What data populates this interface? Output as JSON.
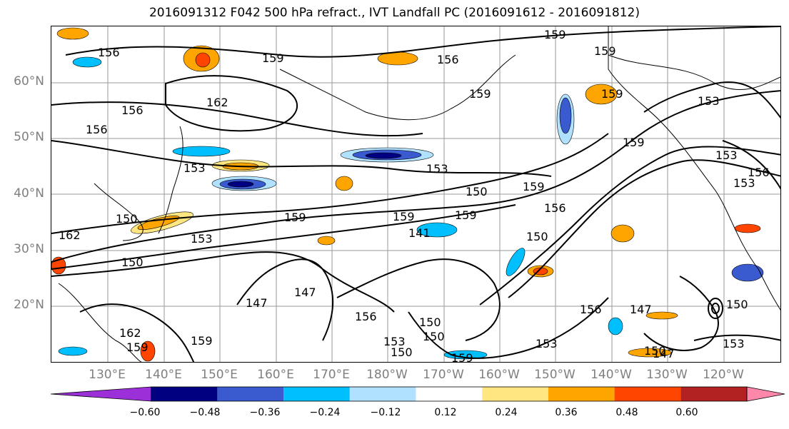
{
  "title": "2016091312 F042 500 hPa refract., IVT Landfall PC (2016091612 - 2016091812)",
  "map": {
    "lat_labels": [
      "60°N",
      "50°N",
      "40°N",
      "30°N",
      "20°N"
    ],
    "lon_labels": [
      "130°E",
      "140°E",
      "150°E",
      "160°E",
      "170°E",
      "180°W",
      "170°W",
      "160°W",
      "150°W",
      "140°W",
      "130°W",
      "120°W"
    ],
    "contour_labels": [
      "159",
      "159",
      "156",
      "156",
      "159",
      "162",
      "156",
      "156",
      "159",
      "153",
      "153",
      "150",
      "159",
      "159",
      "150",
      "162",
      "153",
      "150",
      "147",
      "147",
      "156",
      "150",
      "159",
      "153",
      "156",
      "150",
      "159",
      "153",
      "153",
      "153",
      "147",
      "150",
      "153",
      "162",
      "159",
      "159",
      "150",
      "147",
      "150",
      "156",
      "150",
      "159",
      "153",
      "156",
      "159",
      "141",
      "159"
    ]
  },
  "colorbar": {
    "colors": [
      "#9b30d9",
      "#000080",
      "#3a5bd0",
      "#00bfff",
      "#b0e2ff",
      "#ffffff",
      "#ffe680",
      "#ffa500",
      "#ff4500",
      "#b22222",
      "#ff88aa"
    ],
    "tick_labels": [
      "−0.60",
      "−0.48",
      "−0.36",
      "−0.24",
      "−0.12",
      "0.12",
      "0.24",
      "0.36",
      "0.48",
      "0.60"
    ]
  }
}
